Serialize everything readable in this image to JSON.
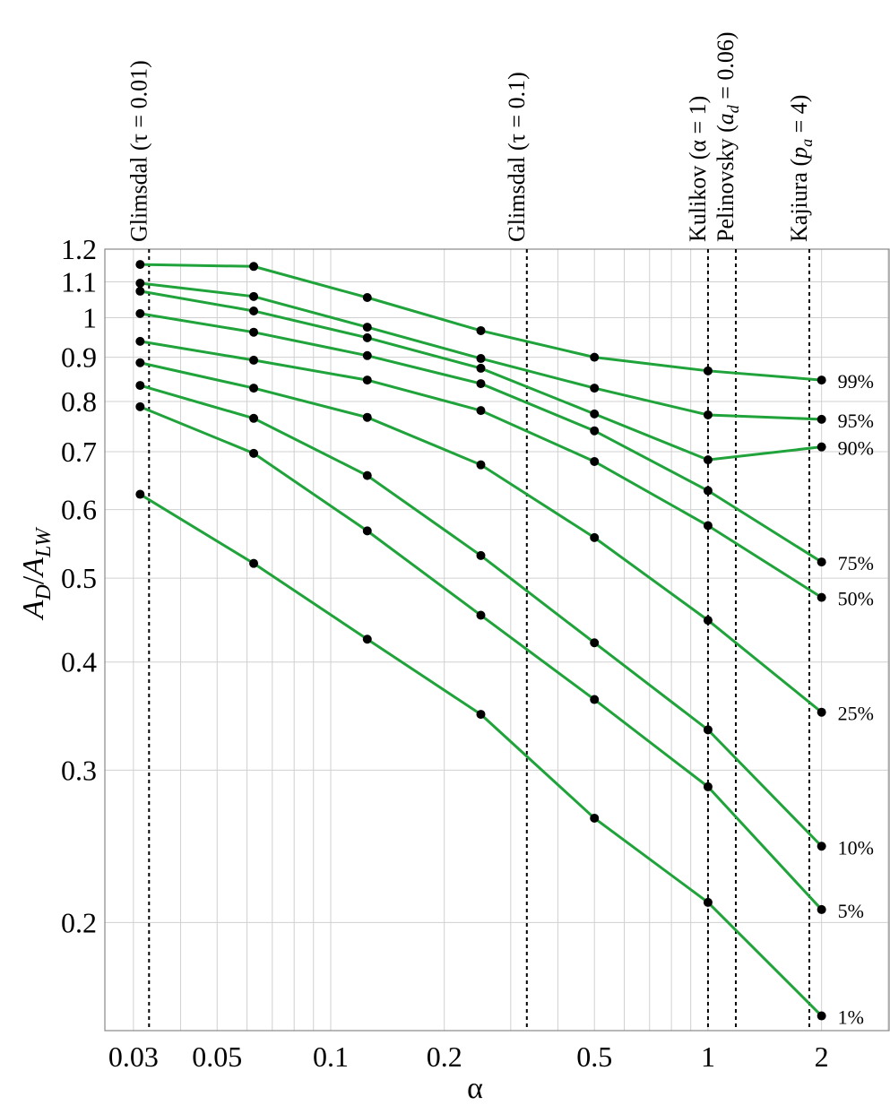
{
  "chart_data": {
    "type": "line",
    "title": "",
    "xlabel": "α",
    "ylabel": {
      "var1": "A",
      "sub1": "D",
      "sep": "/",
      "var2": "A",
      "sub2": "LW"
    },
    "xscale": "log",
    "yscale": "log",
    "xlim": [
      0.0252,
      3.02
    ],
    "ylim": [
      0.15,
      1.2
    ],
    "grid": true,
    "x_ticks": [
      0.03,
      0.05,
      0.1,
      0.2,
      0.5,
      1,
      2
    ],
    "x_tick_labels": [
      "0.03",
      "0.05",
      "0.1",
      "0.2",
      "0.5",
      "1",
      "2"
    ],
    "y_ticks": [
      0.2,
      0.3,
      0.4,
      0.5,
      0.6,
      0.7,
      0.8,
      0.9,
      1,
      1.1,
      1.2
    ],
    "y_tick_labels": [
      "0.2",
      "0.3",
      "0.4",
      "0.5",
      "0.6",
      "0.7",
      "0.8",
      "0.9",
      "1",
      "1.1",
      "1.2"
    ],
    "x": [
      0.03125,
      0.0625,
      0.125,
      0.25,
      0.5,
      1,
      2
    ],
    "series": [
      {
        "name": "99%",
        "values": [
          1.152,
          1.146,
          1.055,
          0.966,
          0.9,
          0.868,
          0.847
        ]
      },
      {
        "name": "95%",
        "values": [
          1.096,
          1.058,
          0.975,
          0.897,
          0.829,
          0.772,
          0.763
        ]
      },
      {
        "name": "90%",
        "values": [
          1.073,
          1.018,
          0.948,
          0.874,
          0.774,
          0.685,
          0.709
        ]
      },
      {
        "name": "75%",
        "values": [
          1.011,
          0.962,
          0.904,
          0.839,
          0.74,
          0.631,
          0.522
        ]
      },
      {
        "name": "50%",
        "values": [
          0.939,
          0.893,
          0.847,
          0.781,
          0.682,
          0.575,
          0.475
        ]
      },
      {
        "name": "25%",
        "values": [
          0.887,
          0.829,
          0.767,
          0.676,
          0.557,
          0.447,
          0.35
        ]
      },
      {
        "name": "10%",
        "values": [
          0.835,
          0.765,
          0.657,
          0.531,
          0.421,
          0.334,
          0.245
        ]
      },
      {
        "name": "5%",
        "values": [
          0.789,
          0.697,
          0.567,
          0.453,
          0.362,
          0.287,
          0.207
        ]
      },
      {
        "name": "1%",
        "values": [
          0.625,
          0.52,
          0.425,
          0.348,
          0.264,
          0.211,
          0.156
        ]
      }
    ],
    "line_color": "#1fa33a",
    "marker_color": "#000000",
    "reference_lines": [
      {
        "x": 0.033,
        "label": {
          "prefix": "Glimsdal (τ = 0.01)",
          "var": "",
          "sub": "",
          "suffix": ""
        }
      },
      {
        "x": 0.331,
        "label": {
          "prefix": "Glimsdal (τ = 0.1)",
          "var": "",
          "sub": "",
          "suffix": ""
        }
      },
      {
        "x": 1.0,
        "label": {
          "prefix": "Kulikov (α = 1)",
          "var": "",
          "sub": "",
          "suffix": ""
        }
      },
      {
        "x": 1.185,
        "label": {
          "prefix": "Pelinovsky (",
          "var": "a",
          "sub": "d",
          "suffix": " = 0.06)"
        }
      },
      {
        "x": 1.856,
        "label": {
          "prefix": "Kajiura (",
          "var": "p",
          "sub": "a",
          "suffix": " = 4)"
        }
      }
    ]
  }
}
